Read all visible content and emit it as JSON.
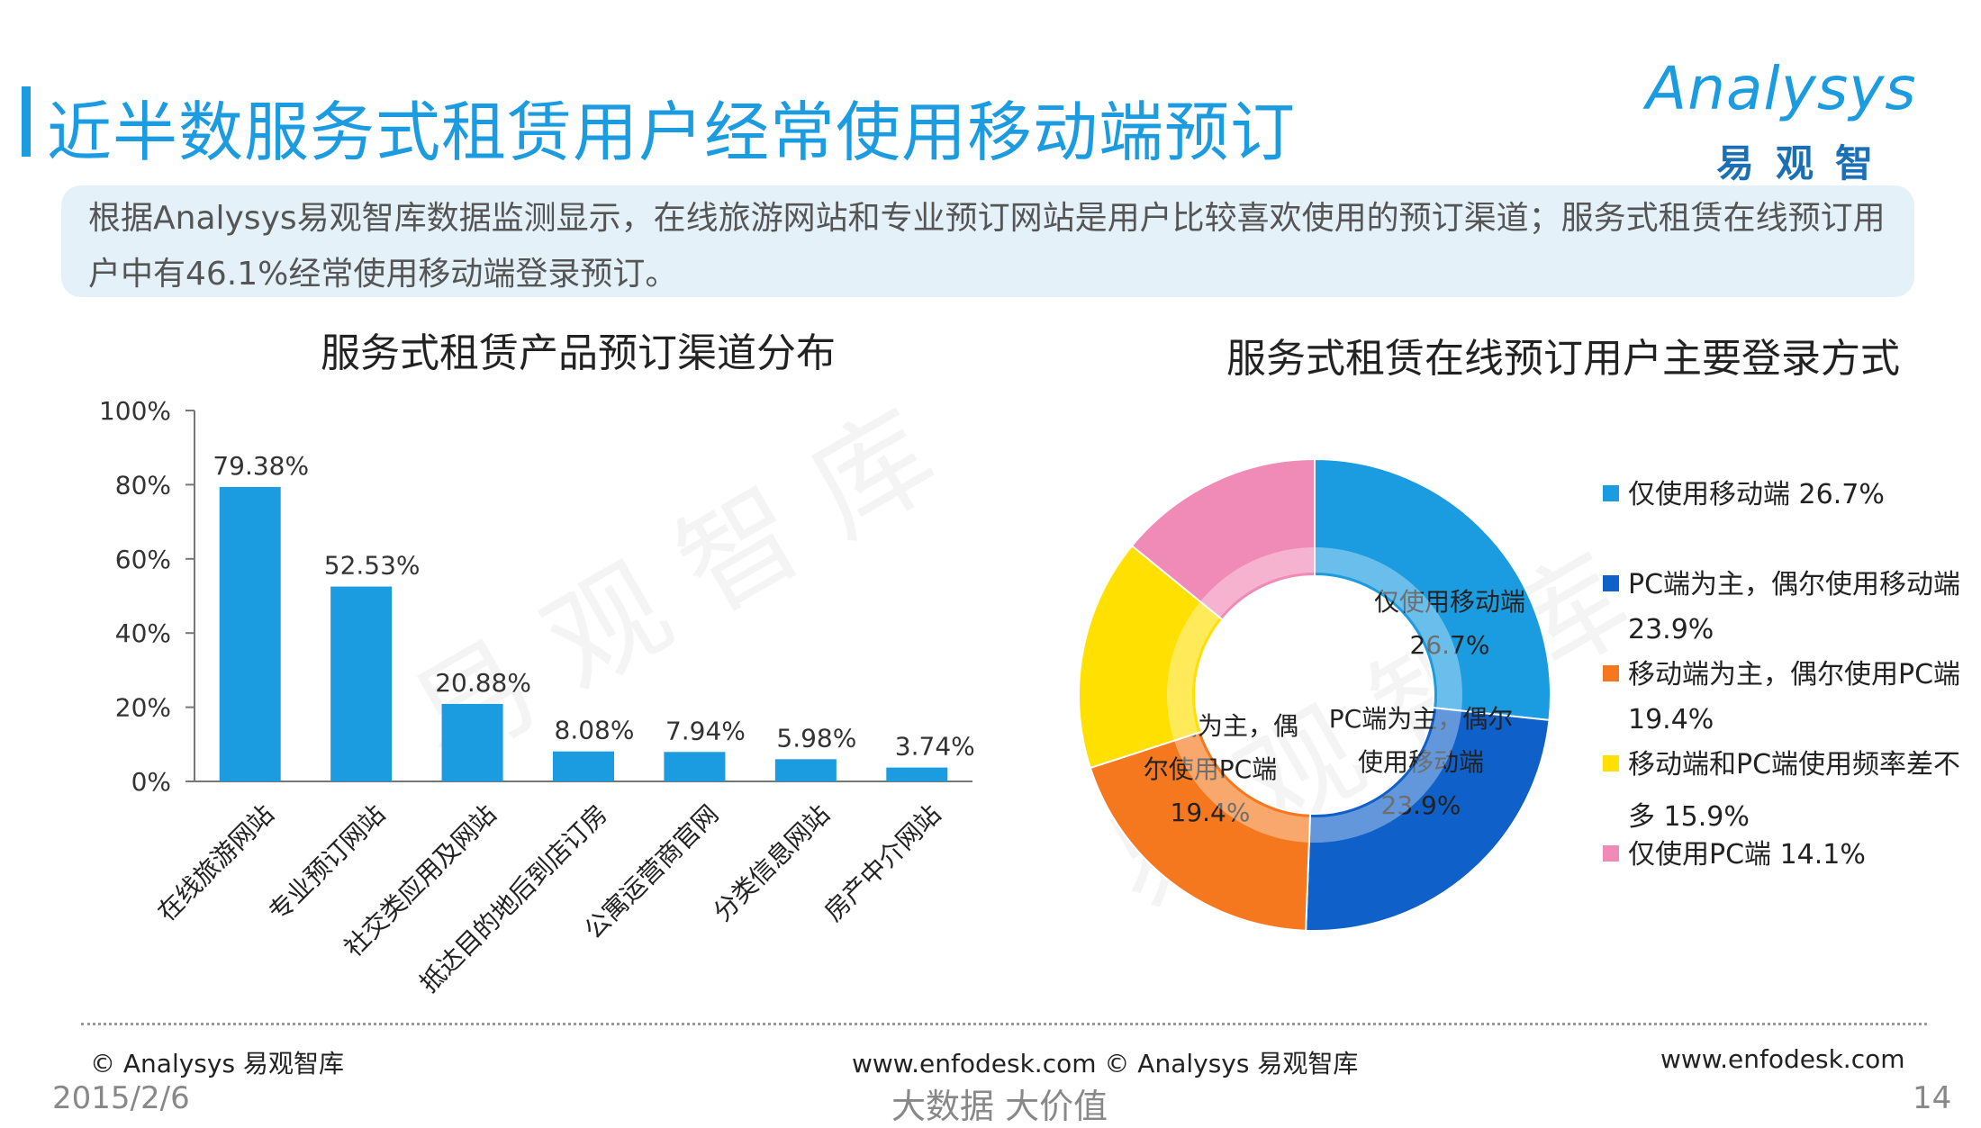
{
  "page_title": "近半数服务式租赁用户经常使用移动端预订",
  "logo": {
    "word": "Analysys",
    "sub": "易观智库"
  },
  "summary": "根据Analysys易观智库数据监测显示，在线旅游网站和专业预订网站是用户比较喜欢使用的预订渠道；服务式租赁在线预订用户中有46.1%经常使用移动端登录预订。",
  "watermark": "易观智库",
  "chart_data": [
    {
      "type": "bar",
      "title": "服务式租赁产品预订渠道分布",
      "categories": [
        "在线旅游网站",
        "专业预订网站",
        "社交类应用及网站",
        "抵达目的地后到店订房",
        "公寓运营商官网",
        "分类信息网站",
        "房产中介网站"
      ],
      "values": [
        79.38,
        52.53,
        20.88,
        8.08,
        7.94,
        5.98,
        3.74
      ],
      "value_labels": [
        "79.38%",
        "52.53%",
        "20.88%",
        "8.08%",
        "7.94%",
        "5.98%",
        "3.74%"
      ],
      "yticks": [
        "0%",
        "20%",
        "40%",
        "60%",
        "80%",
        "100%"
      ],
      "ylim": [
        0,
        100
      ],
      "color": "#1b9be0",
      "grid": false
    },
    {
      "type": "pie",
      "title": "服务式租赁在线预订用户主要登录方式",
      "donut": true,
      "slices": [
        {
          "name": "仅使用移动端",
          "value": 26.7,
          "label": "26.7%",
          "color": "#1b9be0",
          "inner_label": [
            "仅使用移动端",
            "26.7%"
          ]
        },
        {
          "name": "PC端为主，偶尔使用移动端",
          "value": 23.9,
          "label": "23.9%",
          "color": "#1060c9",
          "inner_label": [
            "PC端为主，偶尔",
            "使用移动端",
            "23.9%"
          ]
        },
        {
          "name": "移动端为主，偶尔使用PC端",
          "value": 19.4,
          "label": "19.4%",
          "color": "#f5781f",
          "inner_label": [
            "移动端为主，偶",
            "尔使用PC端",
            "19.4%"
          ]
        },
        {
          "name": "移动端和PC端使用频率差不多",
          "value": 15.9,
          "label": "15.9%",
          "color": "#ffe000",
          "inner_label": []
        },
        {
          "name": "仅使用PC端",
          "value": 14.1,
          "label": "14.1%",
          "color": "#f08ab6",
          "inner_label": []
        }
      ],
      "legend": [
        {
          "line1": "仅使用移动端  26.7%",
          "line2": ""
        },
        {
          "line1": "PC端为主，偶尔使用移动端",
          "line2": "23.9%"
        },
        {
          "line1": "移动端为主，偶尔使用PC端",
          "line2": "19.4%"
        },
        {
          "line1": "移动端和PC端使用频率差不",
          "line2": "多  15.9%"
        },
        {
          "line1": "仅使用PC端  14.1%",
          "line2": ""
        }
      ],
      "legend_position": "right"
    }
  ],
  "footer": {
    "left": "© Analysys 易观智库",
    "center": "www.enfodesk.com © Analysys 易观智库",
    "right": "www.enfodesk.com"
  },
  "date": "2015/2/6",
  "tagline": "大数据    大价值",
  "page_number": "14"
}
